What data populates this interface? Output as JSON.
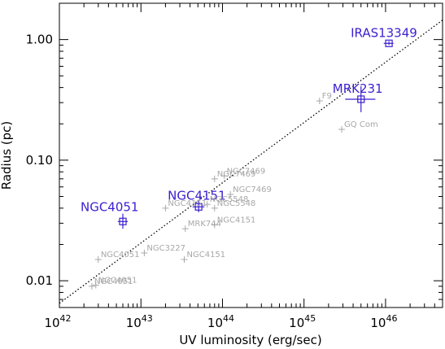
{
  "chart_data": {
    "type": "scatter",
    "xlabel": "UV luminosity (erg/sec)",
    "ylabel": "Radius (pc)",
    "x_scale": "log",
    "y_scale": "log",
    "xlim": [
      1e+42,
      5e+46
    ],
    "ylim": [
      0.006,
      2.0
    ],
    "grid": false,
    "x_ticks": [
      {
        "value": 1e+42,
        "base": "10",
        "exp": "42"
      },
      {
        "value": 1e+43,
        "base": "10",
        "exp": "43"
      },
      {
        "value": 1e+44,
        "base": "10",
        "exp": "44"
      },
      {
        "value": 1e+45,
        "base": "10",
        "exp": "45"
      },
      {
        "value": 1e+46,
        "base": "10",
        "exp": "46"
      }
    ],
    "y_ticks": [
      {
        "value": 0.01,
        "label": "0.01"
      },
      {
        "value": 0.1,
        "label": "0.10"
      },
      {
        "value": 1.0,
        "label": "1.00"
      }
    ],
    "fit_line": [
      [
        1e+42,
        0.0065
      ],
      [
        5e+46,
        1.45
      ]
    ],
    "points": [
      {
        "label": "IRAS13349",
        "x": 1.1e+46,
        "y": 0.93,
        "xerr": [
          9.5e+45,
          1.25e+46
        ],
        "yerr": [
          0.9,
          0.97
        ],
        "highlight": true
      },
      {
        "label": "MRK231",
        "x": 5e+45,
        "y": 0.32,
        "xerr": [
          3.2e+45,
          7.5e+45
        ],
        "yerr": [
          0.25,
          0.41
        ],
        "highlight": true
      },
      {
        "label": "NGC4151",
        "x": 5.1e+43,
        "y": 0.041,
        "xerr": [
          4.3e+43,
          6e+43
        ],
        "yerr": [
          0.037,
          0.046
        ],
        "highlight": true
      },
      {
        "label": "NGC4051",
        "x": 6e+42,
        "y": 0.031,
        "xerr": [
          5.2e+42,
          6.9e+42
        ],
        "yerr": [
          0.027,
          0.036
        ],
        "highlight": true
      },
      {
        "label": "F9",
        "x": 1.55e+45,
        "y": 0.31,
        "highlight": false
      },
      {
        "label": "GQ Com",
        "x": 2.9e+45,
        "y": 0.18,
        "highlight": false
      },
      {
        "label": "NGC7469",
        "x": 8e+43,
        "y": 0.07,
        "highlight": false
      },
      {
        "label": "NGC7469",
        "x": 1.05e+44,
        "y": 0.074,
        "highlight": false
      },
      {
        "label": "NGC7469",
        "x": 1.25e+44,
        "y": 0.052,
        "highlight": false
      },
      {
        "label": "NGC4151",
        "x": 2e+43,
        "y": 0.04,
        "highlight": false
      },
      {
        "label": "NGC5548",
        "x": 6.5e+43,
        "y": 0.043,
        "highlight": false
      },
      {
        "label": "NGC5548",
        "x": 8e+43,
        "y": 0.04,
        "highlight": false
      },
      {
        "label": "MRK744",
        "x": 3.5e+43,
        "y": 0.027,
        "highlight": false
      },
      {
        "label": "NGC4151",
        "x": 8e+43,
        "y": 0.029,
        "highlight": false
      },
      {
        "label": "NGC4051",
        "x": 3e+42,
        "y": 0.015,
        "highlight": false
      },
      {
        "label": "NGC3227",
        "x": 1.1e+43,
        "y": 0.017,
        "highlight": false
      },
      {
        "label": "NGC4151",
        "x": 3.4e+43,
        "y": 0.015,
        "highlight": false
      },
      {
        "label": "NGC4051",
        "x": 2.5e+42,
        "y": 0.009,
        "highlight": false
      },
      {
        "label": "NGC4051",
        "x": 2.8e+42,
        "y": 0.0092,
        "highlight": false
      }
    ]
  }
}
